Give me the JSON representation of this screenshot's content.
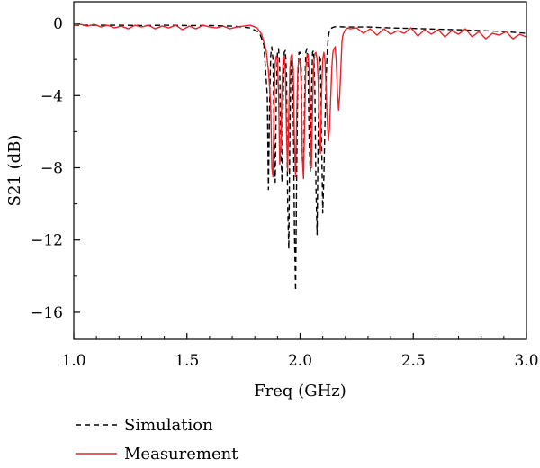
{
  "chart_data": {
    "type": "line",
    "xlabel": "Freq (GHz)",
    "ylabel": "S21 (dB)",
    "xlim": [
      1.0,
      3.0
    ],
    "ylim": [
      -17.5,
      1.2
    ],
    "xticks": [
      1.0,
      1.5,
      2.0,
      2.5,
      3.0
    ],
    "xtick_labels": [
      "1.0",
      "1.5",
      "2.0",
      "2.5",
      "3.0"
    ],
    "yticks": [
      0,
      -4,
      -8,
      -12,
      -16
    ],
    "ytick_labels": [
      "0",
      "−4",
      "−8",
      "−12",
      "−16"
    ],
    "grid": false,
    "legend_position": "bottom-left-outside",
    "series": [
      {
        "name": "Simulation",
        "color": "#000000",
        "style": "dashed",
        "x": [
          1.0,
          1.1,
          1.2,
          1.3,
          1.4,
          1.5,
          1.6,
          1.7,
          1.78,
          1.82,
          1.84,
          1.855,
          1.86,
          1.865,
          1.87,
          1.875,
          1.88,
          1.885,
          1.89,
          1.895,
          1.9,
          1.905,
          1.91,
          1.915,
          1.92,
          1.925,
          1.93,
          1.935,
          1.94,
          1.945,
          1.95,
          1.955,
          1.96,
          1.965,
          1.97,
          1.975,
          1.98,
          1.985,
          1.99,
          1.995,
          2.0,
          2.005,
          2.01,
          2.015,
          2.02,
          2.025,
          2.03,
          2.035,
          2.04,
          2.045,
          2.05,
          2.055,
          2.06,
          2.065,
          2.07,
          2.075,
          2.08,
          2.085,
          2.09,
          2.095,
          2.1,
          2.105,
          2.11,
          2.115,
          2.12,
          2.125,
          2.13,
          2.14,
          2.15,
          2.16,
          2.2,
          2.3,
          2.4,
          2.5,
          2.6,
          2.7,
          2.8,
          2.9,
          3.0
        ],
        "y": [
          -0.1,
          -0.1,
          -0.1,
          -0.12,
          -0.1,
          -0.12,
          -0.12,
          -0.15,
          -0.25,
          -0.5,
          -1.2,
          -4.0,
          -9.2,
          -4.5,
          -1.8,
          -1.3,
          -2.0,
          -6.0,
          -8.8,
          -4.0,
          -1.6,
          -1.4,
          -2.5,
          -7.0,
          -8.8,
          -4.2,
          -1.6,
          -1.5,
          -2.8,
          -10.0,
          -12.5,
          -6.0,
          -2.0,
          -1.9,
          -5.0,
          -11.5,
          -14.8,
          -8.0,
          -3.0,
          -1.6,
          -1.6,
          -2.6,
          -7.5,
          -8.5,
          -4.0,
          -1.6,
          -1.4,
          -2.4,
          -6.5,
          -8.2,
          -4.0,
          -1.6,
          -1.5,
          -3.5,
          -9.0,
          -11.7,
          -6.0,
          -1.8,
          -2.0,
          -6.5,
          -10.5,
          -8.5,
          -5.5,
          -3.0,
          -1.5,
          -0.7,
          -0.4,
          -0.25,
          -0.2,
          -0.18,
          -0.2,
          -0.2,
          -0.25,
          -0.28,
          -0.32,
          -0.35,
          -0.4,
          -0.45,
          -0.55
        ]
      },
      {
        "name": "Measurement",
        "color": "#e8232a",
        "style": "solid",
        "x": [
          1.0,
          1.03,
          1.06,
          1.09,
          1.12,
          1.15,
          1.18,
          1.21,
          1.24,
          1.27,
          1.3,
          1.33,
          1.36,
          1.39,
          1.42,
          1.45,
          1.48,
          1.51,
          1.54,
          1.57,
          1.6,
          1.63,
          1.66,
          1.69,
          1.72,
          1.75,
          1.78,
          1.81,
          1.83,
          1.85,
          1.86,
          1.865,
          1.87,
          1.875,
          1.88,
          1.885,
          1.89,
          1.895,
          1.9,
          1.905,
          1.91,
          1.915,
          1.92,
          1.925,
          1.93,
          1.935,
          1.94,
          1.945,
          1.95,
          1.955,
          1.96,
          1.965,
          1.97,
          1.975,
          1.98,
          1.985,
          1.99,
          1.995,
          2.0,
          2.005,
          2.01,
          2.015,
          2.02,
          2.025,
          2.03,
          2.035,
          2.04,
          2.045,
          2.05,
          2.055,
          2.06,
          2.065,
          2.07,
          2.075,
          2.08,
          2.085,
          2.09,
          2.095,
          2.1,
          2.105,
          2.11,
          2.115,
          2.12,
          2.125,
          2.13,
          2.135,
          2.14,
          2.145,
          2.15,
          2.155,
          2.16,
          2.165,
          2.17,
          2.175,
          2.18,
          2.185,
          2.19,
          2.2,
          2.21,
          2.22,
          2.25,
          2.28,
          2.31,
          2.34,
          2.37,
          2.4,
          2.43,
          2.46,
          2.49,
          2.52,
          2.55,
          2.58,
          2.61,
          2.64,
          2.67,
          2.7,
          2.73,
          2.76,
          2.79,
          2.82,
          2.85,
          2.88,
          2.91,
          2.94,
          2.97,
          3.0
        ],
        "y": [
          -0.1,
          -0.05,
          -0.15,
          -0.05,
          -0.2,
          -0.1,
          -0.25,
          -0.15,
          -0.3,
          -0.1,
          -0.2,
          -0.1,
          -0.3,
          -0.15,
          -0.25,
          -0.1,
          -0.35,
          -0.15,
          -0.3,
          -0.1,
          -0.2,
          -0.25,
          -0.15,
          -0.3,
          -0.2,
          -0.15,
          -0.1,
          -0.25,
          -0.6,
          -1.5,
          -2.6,
          -3.5,
          -4.5,
          -8.0,
          -8.5,
          -4.5,
          -2.2,
          -1.8,
          -2.0,
          -4.0,
          -7.8,
          -6.8,
          -3.5,
          -2.0,
          -1.8,
          -2.6,
          -6.0,
          -8.2,
          -5.0,
          -2.5,
          -1.8,
          -1.7,
          -2.6,
          -6.5,
          -8.5,
          -5.0,
          -2.5,
          -2.0,
          -2.1,
          -3.5,
          -7.5,
          -8.6,
          -5.5,
          -2.5,
          -1.8,
          -1.7,
          -2.7,
          -6.2,
          -8.0,
          -4.5,
          -2.3,
          -1.7,
          -1.6,
          -2.0,
          -3.2,
          -6.5,
          -7.2,
          -3.8,
          -2.0,
          -1.6,
          -2.1,
          -3.7,
          -5.4,
          -6.5,
          -5.8,
          -4.2,
          -2.5,
          -1.6,
          -1.4,
          -1.3,
          -2.2,
          -3.8,
          -4.8,
          -4.0,
          -2.5,
          -1.0,
          -0.6,
          -0.35,
          -0.25,
          -0.3,
          -0.25,
          -0.55,
          -0.3,
          -0.65,
          -0.3,
          -0.6,
          -0.4,
          -0.55,
          -0.25,
          -0.7,
          -0.35,
          -0.6,
          -0.35,
          -0.75,
          -0.4,
          -0.6,
          -0.3,
          -0.75,
          -0.45,
          -0.85,
          -0.55,
          -0.65,
          -0.45,
          -0.85,
          -0.6,
          -0.75
        ]
      }
    ]
  }
}
